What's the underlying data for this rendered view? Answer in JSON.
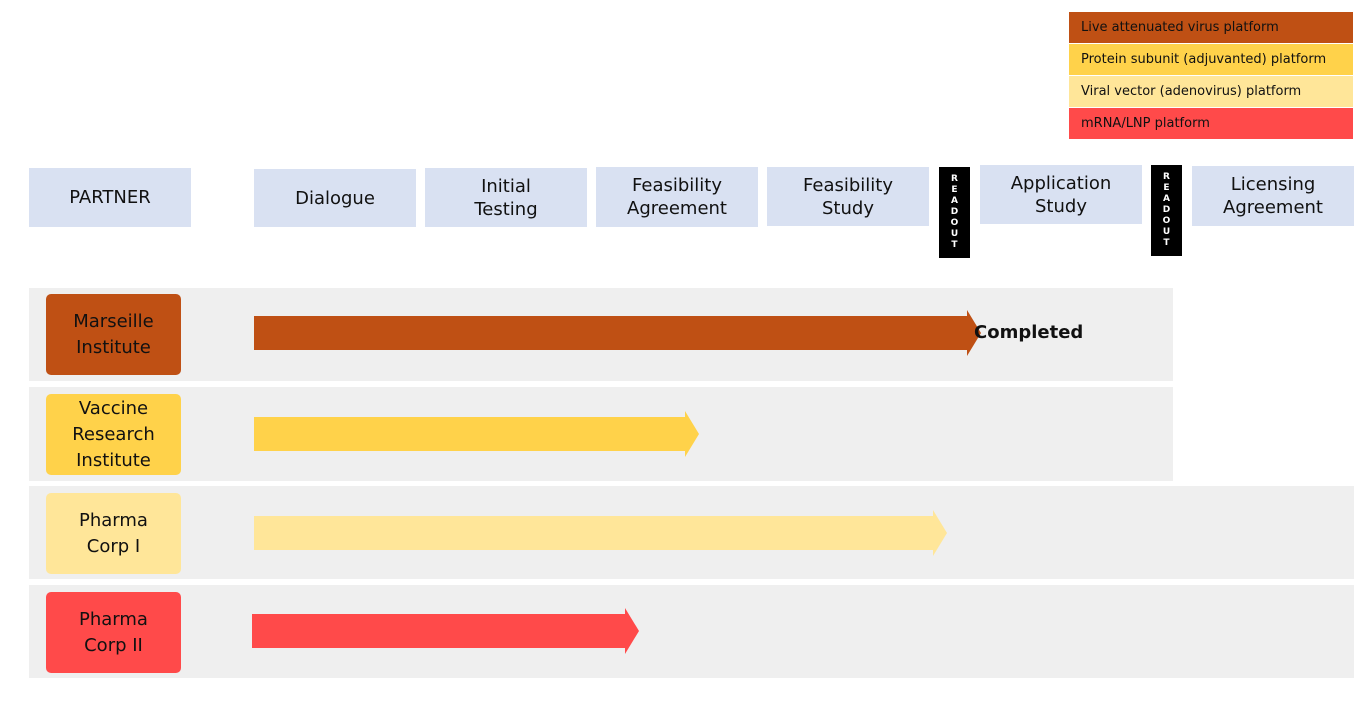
{
  "legend": [
    {
      "label": "Live attenuated virus platform",
      "color": "#bf5014"
    },
    {
      "label": "Protein subunit (adjuvanted) platform",
      "color": "#ffd24a"
    },
    {
      "label": "Viral vector (adenovirus) platform",
      "color": "#ffe699"
    },
    {
      "label": "mRNA/LNP platform",
      "color": "#ff4a4a"
    }
  ],
  "header": {
    "partner": "PARTNER",
    "stages": [
      "Dialogue",
      "Initial\nTesting",
      "Feasibility\nAgreement",
      "Feasibility\nStudy",
      "Application\nStudy",
      "Licensing\nAgreement"
    ],
    "readout": "READOUT"
  },
  "rows": [
    {
      "partner": "Marseille\nInstitute",
      "color": "#bf5014",
      "status": "Completed",
      "progress_end_stage": 4.25
    },
    {
      "partner": "Vaccine\nResearch\nInstitute",
      "color": "#ffd24a",
      "status": "",
      "progress_end_stage": 2.6
    },
    {
      "partner": "Pharma\nCorp I",
      "color": "#ffe699",
      "status": "",
      "progress_end_stage": 4.05
    },
    {
      "partner": "Pharma\nCorp II",
      "color": "#ff4a4a",
      "status": "",
      "progress_end_stage": 2.25
    }
  ]
}
